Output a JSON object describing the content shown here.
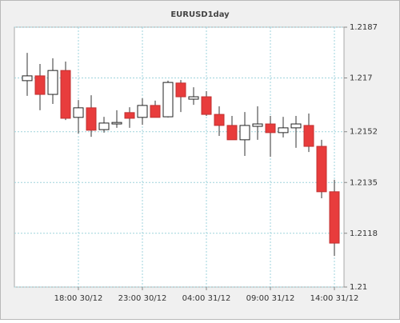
{
  "chart_data": {
    "type": "candlestick",
    "title": "EURUSD1day",
    "categories": [
      "",
      "",
      "",
      "",
      "18:00 30/12",
      "",
      "",
      "",
      "",
      "23:00 30/12",
      "",
      "",
      "",
      "",
      "04:00 31/12",
      "",
      "",
      "",
      "",
      "09:00 31/12",
      "",
      "",
      "",
      "",
      "14:00 31/12"
    ],
    "open": [
      1.21691,
      1.21707,
      1.21645,
      1.21725,
      1.21568,
      1.216,
      1.21527,
      1.21546,
      1.21584,
      1.21568,
      1.21608,
      1.2157,
      1.21683,
      1.21629,
      1.21637,
      1.21578,
      1.21541,
      1.21493,
      1.21538,
      1.21546,
      1.21517,
      1.21533,
      1.21541,
      1.21471,
      1.21319
    ],
    "high": [
      1.21784,
      1.21747,
      1.21766,
      1.21755,
      1.21626,
      1.21642,
      1.2157,
      1.21592,
      1.21602,
      1.21632,
      1.21624,
      1.21691,
      1.21693,
      1.21669,
      1.21656,
      1.21605,
      1.21573,
      1.21586,
      1.21605,
      1.21573,
      1.2157,
      1.21573,
      1.21581,
      1.21493,
      1.21359
    ],
    "low": [
      1.2164,
      1.21592,
      1.21613,
      1.21559,
      1.21514,
      1.21503,
      1.21517,
      1.21533,
      1.21533,
      1.21543,
      1.21568,
      1.21568,
      1.21586,
      1.2161,
      1.21573,
      1.21506,
      1.21493,
      1.21439,
      1.21493,
      1.21436,
      1.21501,
      1.21466,
      1.21452,
      1.21297,
      1.21104
    ],
    "close": [
      1.21707,
      1.21645,
      1.21725,
      1.21565,
      1.216,
      1.21525,
      1.21549,
      1.21551,
      1.21565,
      1.21608,
      1.21568,
      1.21685,
      1.21637,
      1.21637,
      1.21578,
      1.21541,
      1.21493,
      1.21541,
      1.21546,
      1.21517,
      1.21533,
      1.21546,
      1.21471,
      1.21319,
      1.21147
    ],
    "colors": {
      "up": "#ffffff",
      "down": "#e83c3c"
    },
    "ylim": [
      1.21,
      1.2187
    ],
    "yticks": [
      1.21,
      1.2118,
      1.2135,
      1.2152,
      1.217,
      1.2187
    ],
    "grid": true
  }
}
